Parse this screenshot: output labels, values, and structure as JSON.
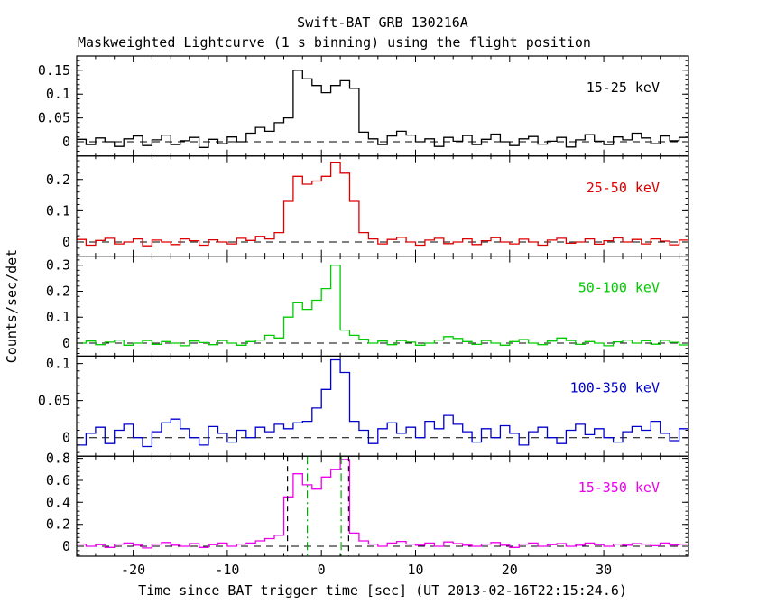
{
  "title": "Swift-BAT GRB 130216A",
  "subtitle": "Maskweighted Lightcurve (1 s binning) using the flight position",
  "ylabel": "Counts/sec/det",
  "xlabel": "Time since BAT trigger time [sec] (UT 2013-02-16T22:15:24.6)",
  "chart_data": {
    "type": "line",
    "style": "step-histogram",
    "binning_sec": 1,
    "x_range": [
      -26,
      39
    ],
    "x_start": -26,
    "x_major_ticks": [
      -20,
      -10,
      0,
      10,
      20,
      30
    ],
    "x_minor_step": 2,
    "grid": false,
    "legend_position": "inside-right",
    "zero_line": {
      "color": "#000000",
      "style": "dashed"
    },
    "panels": [
      {
        "label": "15-25 keV",
        "color": "#000000",
        "ylim": [
          -0.03,
          0.18
        ],
        "yticks": [
          0,
          0.05,
          0.1,
          0.15
        ],
        "y_minor_step": 0.01,
        "values": [
          0.005,
          -0.006,
          0.008,
          0,
          -0.01,
          0.006,
          0.012,
          -0.008,
          0.004,
          0.014,
          -0.006,
          0.002,
          0.009,
          -0.012,
          0.005,
          -0.004,
          0.01,
          0,
          0.018,
          0.03,
          0.022,
          0.04,
          0.05,
          0.15,
          0.132,
          0.118,
          0.103,
          0.118,
          0.128,
          0.112,
          0.02,
          0.006,
          -0.006,
          0.012,
          0.022,
          0.014,
          0,
          0.006,
          -0.01,
          0.009,
          0.001,
          0.013,
          -0.006,
          0.005,
          0.016,
          0,
          -0.008,
          0.006,
          0.011,
          -0.005,
          0.001,
          0.009,
          -0.011,
          0.004,
          0.015,
          0.001,
          -0.006,
          0.01,
          0.004,
          0.018,
          0.008,
          -0.004,
          0.012,
          0.002,
          0.009
        ]
      },
      {
        "label": "25-50 keV",
        "color": "#dd0000",
        "ylim": [
          -0.045,
          0.275
        ],
        "yticks": [
          0,
          0.1,
          0.2
        ],
        "y_minor_step": 0.02,
        "values": [
          0.008,
          -0.01,
          0.005,
          0.012,
          -0.006,
          0,
          0.01,
          -0.012,
          0.006,
          0,
          -0.008,
          0.01,
          0.004,
          -0.01,
          0.007,
          0,
          -0.006,
          0.012,
          0.005,
          0.018,
          0.01,
          0.03,
          0.13,
          0.21,
          0.185,
          0.195,
          0.21,
          0.255,
          0.22,
          0.13,
          0.03,
          0.01,
          -0.006,
          0.008,
          0.015,
          0,
          -0.01,
          0.006,
          0.012,
          -0.005,
          0,
          0.01,
          -0.008,
          0.004,
          0.014,
          0,
          -0.006,
          0.009,
          0,
          -0.01,
          0.006,
          0.012,
          -0.004,
          0,
          0.01,
          -0.007,
          0.004,
          0.013,
          0,
          0.008,
          -0.006,
          0.01,
          0.003,
          -0.009,
          0.006
        ]
      },
      {
        "label": "50-100 keV",
        "color": "#00cc00",
        "ylim": [
          -0.05,
          0.335
        ],
        "yticks": [
          0,
          0.1,
          0.2,
          0.3
        ],
        "y_minor_step": 0.02,
        "values": [
          0,
          0.008,
          -0.006,
          0.004,
          0.012,
          -0.008,
          0,
          0.01,
          -0.005,
          0.006,
          0,
          -0.01,
          0.008,
          0.002,
          -0.006,
          0.01,
          0,
          -0.008,
          0.006,
          0.012,
          0.03,
          0.02,
          0.1,
          0.155,
          0.13,
          0.165,
          0.21,
          0.3,
          0.05,
          0.03,
          0.015,
          0,
          0.008,
          -0.006,
          0.01,
          0.004,
          -0.008,
          0,
          0.012,
          0.025,
          0.018,
          0.006,
          -0.005,
          0.01,
          0,
          -0.008,
          0.006,
          0.014,
          0,
          -0.006,
          0.008,
          0.02,
          0.01,
          -0.005,
          0.006,
          0,
          -0.01,
          0.005,
          0.012,
          0,
          0.009,
          -0.004,
          0.011,
          0.003,
          -0.007
        ]
      },
      {
        "label": "100-350 keV",
        "color": "#0000cc",
        "ylim": [
          -0.025,
          0.11
        ],
        "yticks": [
          0,
          0.05,
          0.1
        ],
        "y_minor_step": 0.01,
        "values": [
          -0.01,
          0.006,
          0.014,
          -0.008,
          0.01,
          0.018,
          0,
          -0.012,
          0.008,
          0.02,
          0.025,
          0.012,
          0,
          -0.01,
          0.015,
          0.006,
          -0.006,
          0.01,
          0,
          0.014,
          0.008,
          0.018,
          0.012,
          0.02,
          0.022,
          0.04,
          0.065,
          0.105,
          0.088,
          0.022,
          0.01,
          -0.008,
          0.012,
          0.02,
          0.006,
          0.014,
          0,
          0.022,
          0.012,
          0.03,
          0.018,
          0.008,
          -0.006,
          0.012,
          0,
          0.016,
          0.006,
          -0.01,
          0.008,
          0.014,
          0,
          -0.008,
          0.01,
          0.018,
          0.004,
          0.012,
          0,
          -0.006,
          0.008,
          0.015,
          0.01,
          0.022,
          0.006,
          -0.004,
          0.012
        ]
      },
      {
        "label": "15-350 keV",
        "color": "#ee00ee",
        "ylim": [
          -0.09,
          0.82
        ],
        "yticks": [
          0,
          0.2,
          0.4,
          0.6,
          0.8
        ],
        "y_minor_step": 0.04,
        "values": [
          0.02,
          0,
          0.015,
          -0.01,
          0.02,
          0.03,
          0.01,
          -0.015,
          0.02,
          0.035,
          0.01,
          0,
          0.025,
          -0.01,
          0.015,
          0.03,
          0,
          0.02,
          0.03,
          0.05,
          0.07,
          0.1,
          0.45,
          0.66,
          0.56,
          0.52,
          0.63,
          0.7,
          0.79,
          0.12,
          0.05,
          0.02,
          0,
          0.03,
          0.045,
          0.02,
          0.01,
          0.03,
          0,
          0.04,
          0.025,
          0.01,
          0,
          0.02,
          0.035,
          0.01,
          -0.01,
          0.02,
          0.03,
          0,
          0.015,
          0.025,
          0,
          0.01,
          0.03,
          0.015,
          0,
          0.02,
          0.01,
          0.025,
          0.02,
          0.005,
          0.03,
          0.012,
          0.02
        ]
      }
    ],
    "vlines": [
      {
        "panel": 4,
        "x": -3.6,
        "color": "#000000",
        "style": "dashed"
      },
      {
        "panel": 4,
        "x": 2.9,
        "color": "#000000",
        "style": "dashed"
      },
      {
        "panel": 4,
        "x": -1.5,
        "color": "#00aa00",
        "style": "dash-dot"
      },
      {
        "panel": 4,
        "x": 2.1,
        "color": "#00aa00",
        "style": "dash-dot"
      }
    ]
  }
}
